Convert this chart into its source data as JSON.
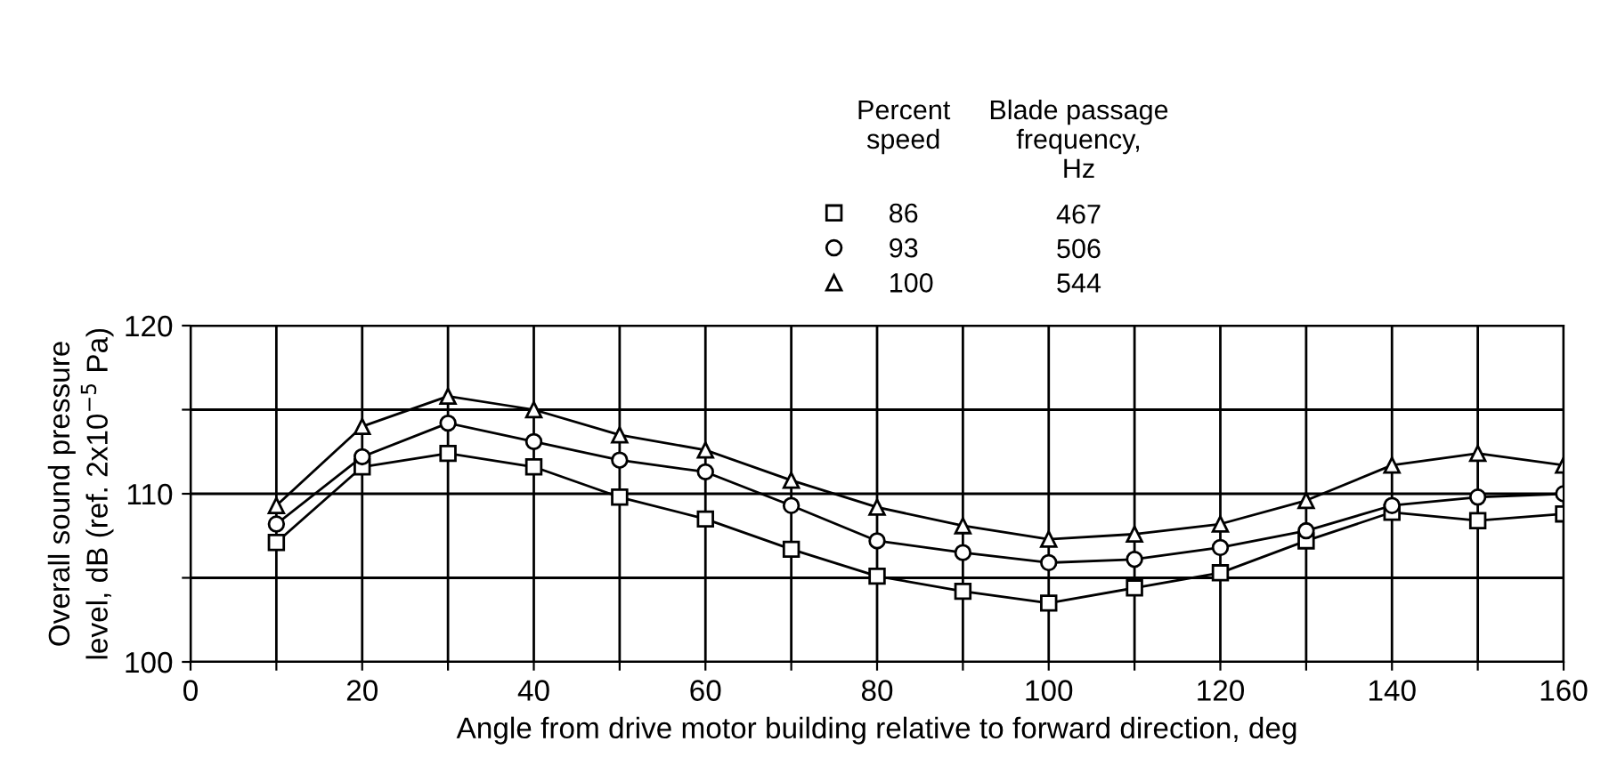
{
  "chart_data": {
    "type": "line",
    "xlabel": "Angle from drive motor building relative to forward direction, deg",
    "ylabel": "Overall sound pressure\nlevel, dB (ref. 2x10$^{−5}$ Pa)",
    "legend_title": "Percent\nspeed",
    "annotations": [
      "Blade passage\nfrequency,\nHz",
      "467",
      "506",
      "544"
    ],
    "x": [
      10,
      20,
      30,
      40,
      50,
      60,
      70,
      80,
      90,
      100,
      110,
      120,
      130,
      140,
      150,
      160
    ],
    "series": [
      {
        "name": "86",
        "color": "#000000",
        "marker": "square",
        "values": [
          107.1,
          111.6,
          112.4,
          111.6,
          109.8,
          108.5,
          106.7,
          105.1,
          104.2,
          103.5,
          104.4,
          105.3,
          107.2,
          108.9,
          108.4,
          108.8
        ]
      },
      {
        "name": "93",
        "color": "#000000",
        "marker": "circle",
        "values": [
          108.2,
          112.2,
          114.2,
          113.1,
          112.0,
          111.3,
          109.3,
          107.2,
          106.5,
          105.9,
          106.1,
          106.8,
          107.8,
          109.3,
          109.8,
          110.0
        ]
      },
      {
        "name": "100",
        "color": "#000000",
        "marker": "triangle",
        "values": [
          109.3,
          114.0,
          115.8,
          115.0,
          113.5,
          112.6,
          110.8,
          109.2,
          108.1,
          107.3,
          107.6,
          108.2,
          109.6,
          111.7,
          112.4,
          111.7
        ]
      }
    ],
    "xlim": [
      0,
      160
    ],
    "xticks": [
      0,
      {
        "value": 10,
        "label": null
      },
      20,
      {
        "value": 30,
        "label": null
      },
      40,
      {
        "value": 50,
        "label": null
      },
      60,
      {
        "value": 70,
        "label": null
      },
      80,
      {
        "value": 90,
        "label": null
      },
      100,
      {
        "value": 110,
        "label": null
      },
      120,
      {
        "value": 130,
        "label": null
      },
      140,
      {
        "value": 150,
        "label": null
      },
      160
    ],
    "ylim": [
      100,
      120
    ],
    "yticks": [
      100,
      {
        "value": 105,
        "label": null
      },
      110,
      {
        "value": 115,
        "label": null
      },
      120
    ],
    "grid": true,
    "legend": "top",
    "line_style": "solid"
  }
}
